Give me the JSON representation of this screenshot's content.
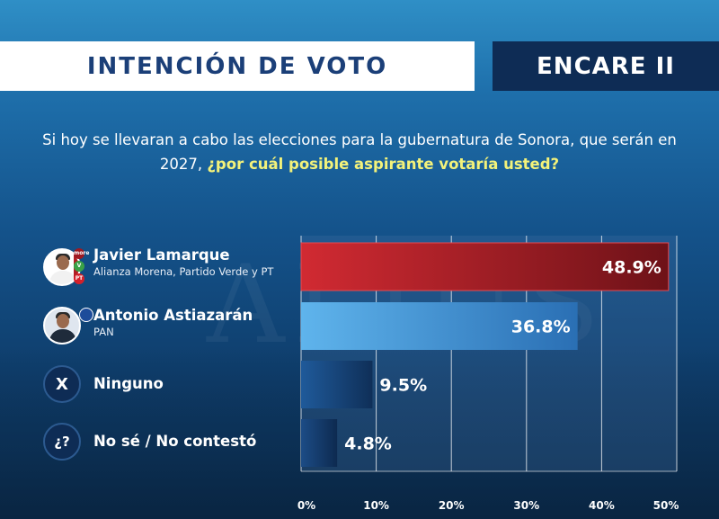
{
  "header": {
    "title": "INTENCIÓN DE VOTO",
    "brand": "ENCARE II"
  },
  "question": {
    "text": "Si hoy se llevaran a cabo las elecciones para la gubernatura de Sonora, que serán en 2027,",
    "highlight": "¿por cuál posible aspirante votaría usted?"
  },
  "candidates": [
    {
      "name": "Javier Lamarque",
      "party": "Alianza Morena, Partido Verde y PT"
    },
    {
      "name": "Antonio Astiazarán",
      "party": "PAN"
    },
    {
      "name": "Ninguno",
      "icon_text": "X"
    },
    {
      "name": "No sé / No contestó",
      "icon_text": "¿?"
    }
  ],
  "badges": {
    "morena": "more",
    "verde": "V",
    "pt": "PT"
  },
  "watermark": "ALIUS",
  "chart_data": {
    "type": "bar",
    "orientation": "horizontal",
    "categories": [
      "Javier Lamarque",
      "Antonio Astiazarán",
      "Ninguno",
      "No sé / No contestó"
    ],
    "values": [
      48.9,
      36.8,
      9.5,
      4.8
    ],
    "value_labels": [
      "48.9%",
      "36.8%",
      "9.5%",
      "4.8%"
    ],
    "xlim": [
      0,
      50
    ],
    "xticks": [
      "0%",
      "10%",
      "20%",
      "30%",
      "40%",
      "50%"
    ],
    "grid": true,
    "bar_colors": [
      "#c0242c",
      "#4aa3e0",
      "#1b4f8a",
      "#163f70"
    ],
    "title": "INTENCIÓN DE VOTO"
  }
}
